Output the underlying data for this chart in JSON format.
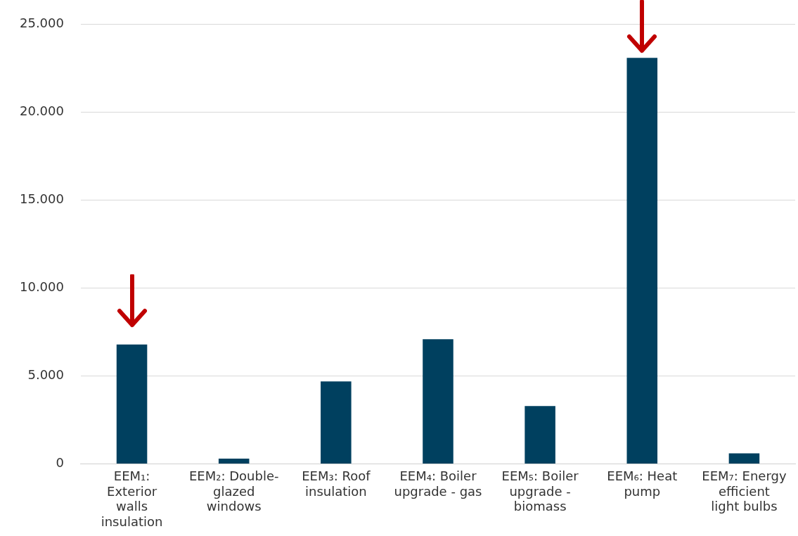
{
  "chart_data": {
    "type": "bar",
    "categories": [
      "EEM₁: Exterior walls insulation",
      "EEM₂: Double-glazed windows",
      "EEM₃: Roof insulation",
      "EEM₄: Boiler upgrade - gas",
      "EEM₅: Boiler upgrade - biomass",
      "EEM₆: Heat pump",
      "EEM₇: Energy efficient light bulbs"
    ],
    "values": [
      6800,
      300,
      4700,
      7100,
      3300,
      23100,
      600
    ],
    "color": "#00405f",
    "ylim": [
      0,
      25000
    ],
    "yticks": [
      {
        "value": 0,
        "label": "0"
      },
      {
        "value": 5000,
        "label": "5.000"
      },
      {
        "value": 10000,
        "label": "10.000"
      },
      {
        "value": 15000,
        "label": "15.000"
      },
      {
        "value": 20000,
        "label": "20.000"
      },
      {
        "value": 25000,
        "label": "25.000"
      }
    ],
    "grid": "y",
    "legend": false
  }
}
